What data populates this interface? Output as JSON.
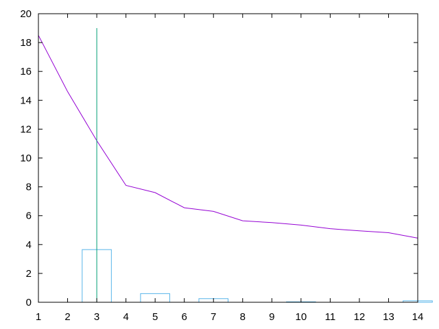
{
  "chart_data": {
    "type": "line",
    "title": "",
    "xlabel": "",
    "ylabel": "",
    "xlim": [
      1,
      14
    ],
    "ylim": [
      0,
      20
    ],
    "xticks": [
      1,
      2,
      3,
      4,
      5,
      6,
      7,
      8,
      9,
      10,
      11,
      12,
      13,
      14
    ],
    "yticks": [
      0,
      2,
      4,
      6,
      8,
      10,
      12,
      14,
      16,
      18,
      20
    ],
    "grid": false,
    "legend": "none",
    "series": [
      {
        "type": "line",
        "color": "#9400d3",
        "x": [
          1,
          2,
          3,
          4,
          5,
          6,
          7,
          8,
          9,
          10,
          11,
          12,
          13,
          14
        ],
        "y": [
          18.5,
          14.6,
          11.2,
          8.1,
          7.6,
          6.55,
          6.3,
          5.65,
          5.52,
          5.35,
          5.1,
          4.95,
          4.82,
          4.45
        ]
      },
      {
        "type": "bar",
        "color": "#56b4e9",
        "width": 1,
        "x": [
          3,
          5,
          7,
          10,
          14
        ],
        "y": [
          3.65,
          0.6,
          0.25,
          0.03,
          0.1
        ]
      },
      {
        "type": "impulse",
        "color": "#009e73",
        "x": [
          3
        ],
        "y": [
          19.0
        ]
      }
    ]
  }
}
